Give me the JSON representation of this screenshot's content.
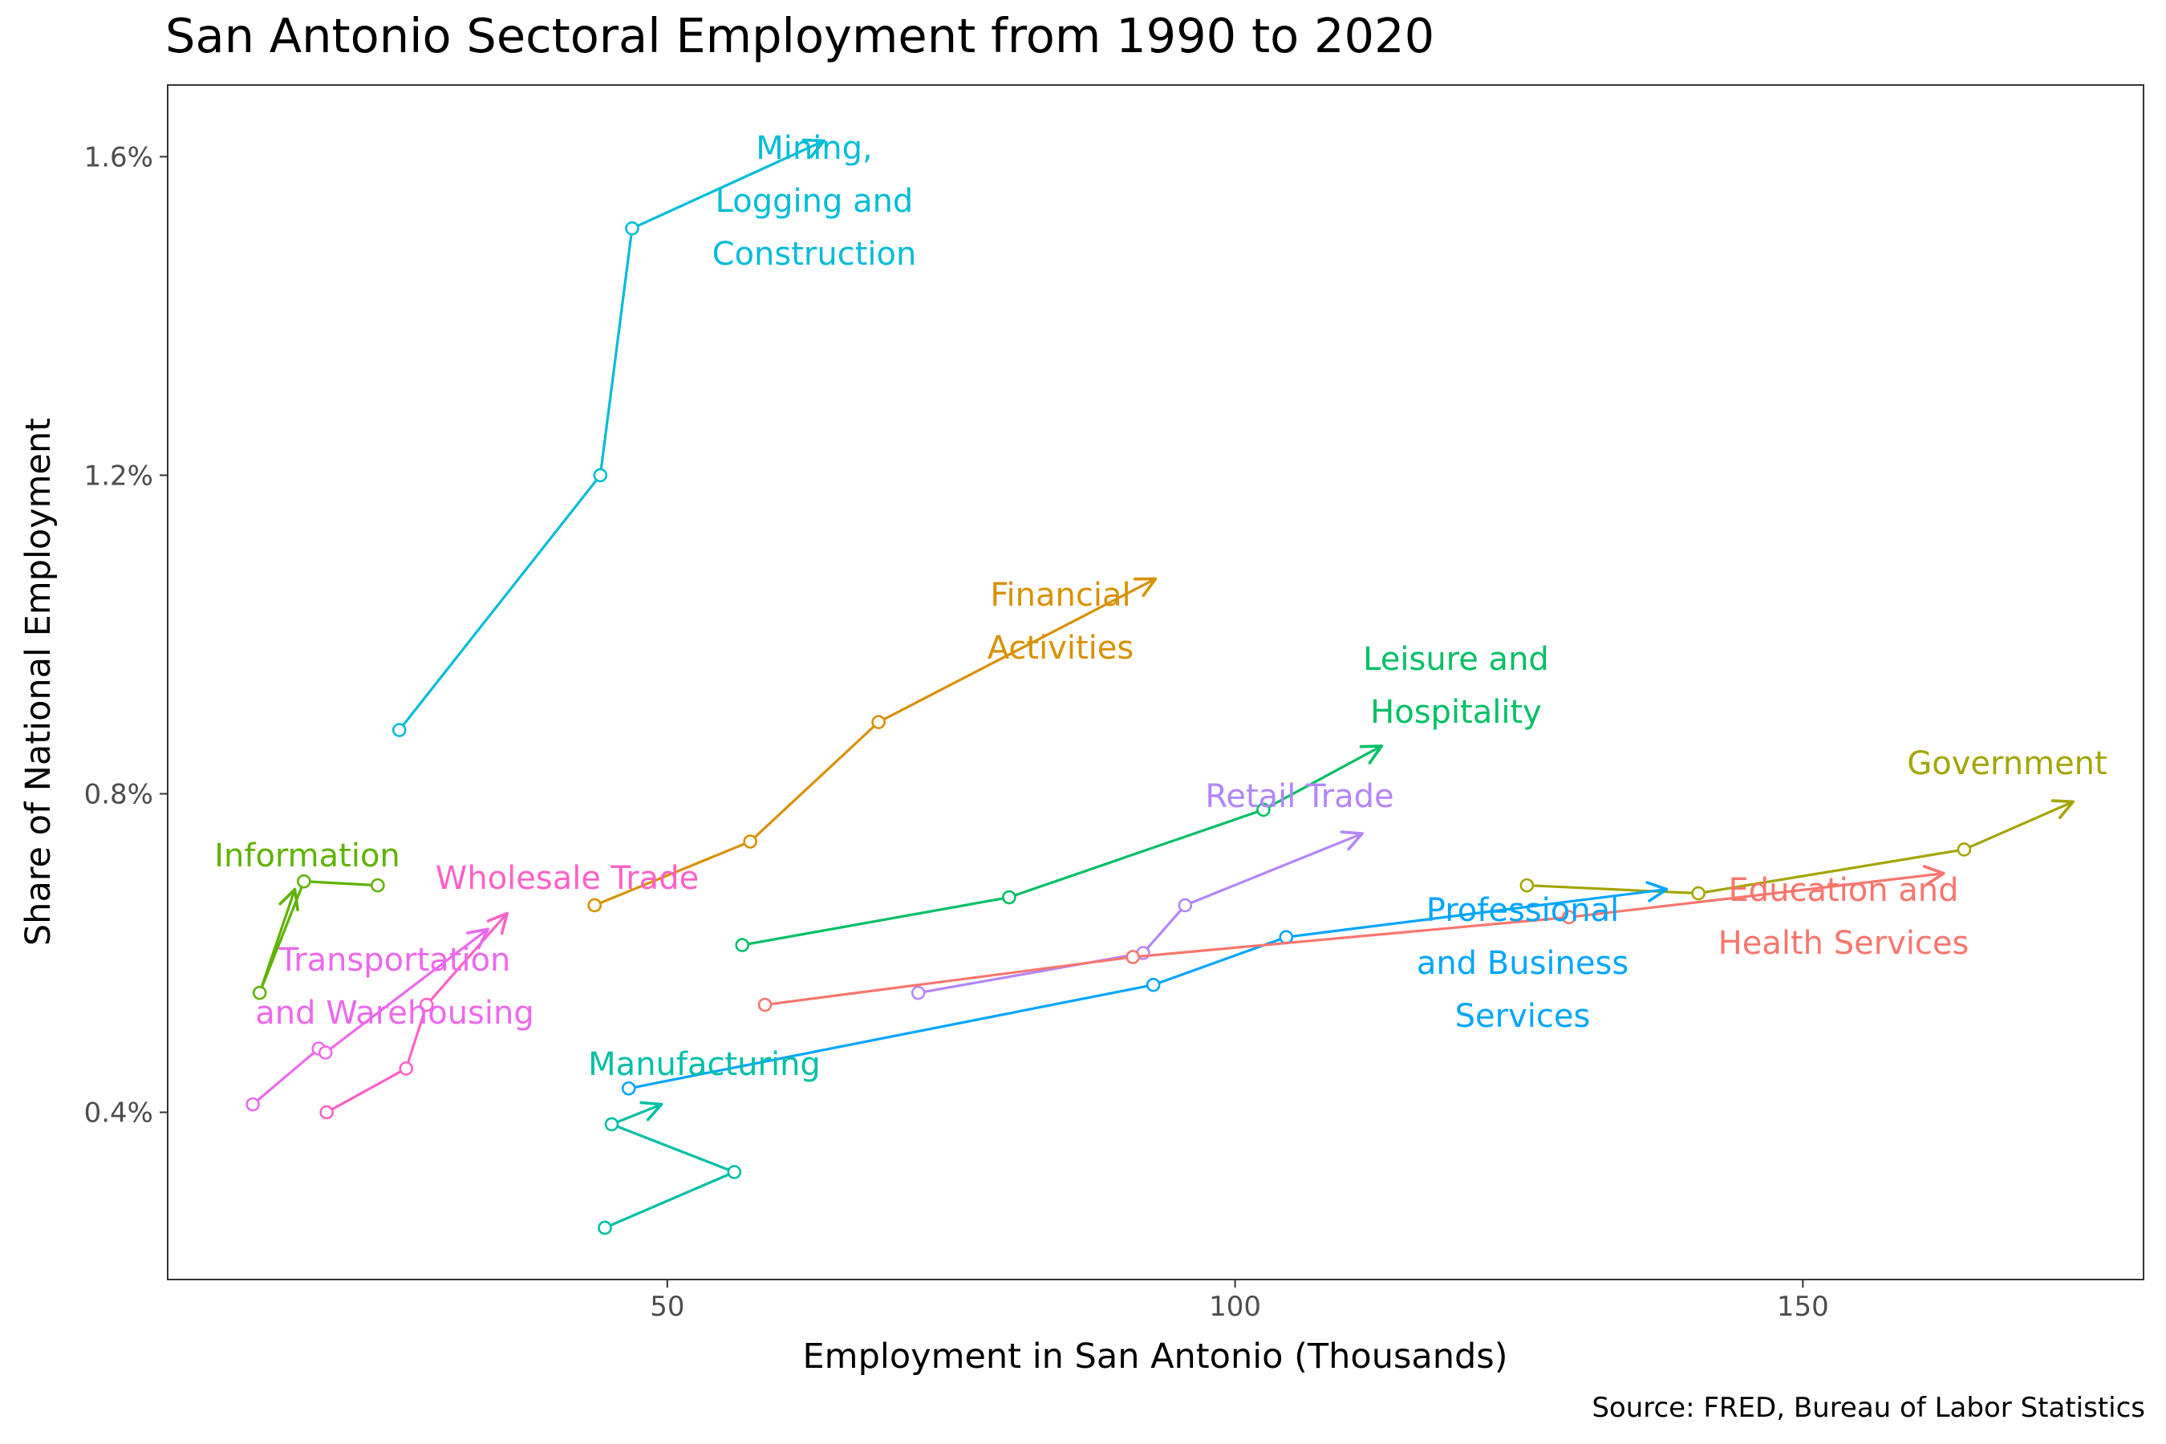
{
  "chart_data": {
    "type": "line",
    "title": "San Antonio Sectoral Employment from 1990 to 2020",
    "xlabel": "Employment in San Antonio (Thousands)",
    "ylabel": "Share of National Employment",
    "caption": "Source: FRED, Bureau of Labor Statistics",
    "xlim": [
      6,
      180
    ],
    "ylim": [
      0.19,
      1.69
    ],
    "x_ticks": [
      50,
      100,
      150
    ],
    "y_ticks": [
      0.4,
      0.8,
      1.2,
      1.6
    ],
    "y_tick_labels": [
      "0.4%",
      "0.8%",
      "1.2%",
      "1.6%"
    ],
    "grid": false,
    "legend": "none (direct labels)",
    "series": [
      {
        "name": "Mining, Logging and Construction",
        "color": "#00BCD8",
        "label_lines": [
          "Mining,",
          "Logging and",
          "Construction"
        ],
        "x": [
          26.4,
          44.1,
          46.9,
          63.8
        ],
        "y": [
          0.88,
          1.2,
          1.51,
          1.62
        ]
      },
      {
        "name": "Financial Activities",
        "color": "#D89000",
        "label_lines": [
          "Financial",
          "Activities"
        ],
        "x": [
          43.6,
          57.3,
          68.6,
          93.0
        ],
        "y": [
          0.66,
          0.74,
          0.89,
          1.07
        ]
      },
      {
        "name": "Leisure and Hospitality",
        "color": "#00BF65",
        "label_lines": [
          "Leisure and",
          "Hospitality"
        ],
        "x": [
          56.6,
          80.1,
          102.5,
          112.9
        ],
        "y": [
          0.61,
          0.67,
          0.78,
          0.86
        ]
      },
      {
        "name": "Government",
        "color": "#A3A500",
        "label_lines": [
          "Government"
        ],
        "x": [
          125.7,
          140.8,
          164.2,
          173.8
        ],
        "y": [
          0.685,
          0.675,
          0.73,
          0.79
        ]
      },
      {
        "name": "Retail Trade",
        "color": "#B385FF",
        "label_lines": [
          "Retail Trade"
        ],
        "x": [
          72.1,
          91.9,
          95.6,
          111.2
        ],
        "y": [
          0.55,
          0.6,
          0.66,
          0.75
        ]
      },
      {
        "name": "Professional and Business Services",
        "color": "#00A5FF",
        "label_lines": [
          "Professional",
          "and Business",
          "Services"
        ],
        "x": [
          46.6,
          92.8,
          104.5,
          138.0
        ],
        "y": [
          0.43,
          0.56,
          0.62,
          0.68
        ]
      },
      {
        "name": "Education and Health Services",
        "color": "#F8766D",
        "label_lines": [
          "Education and",
          "Health Services"
        ],
        "x": [
          58.6,
          91.0,
          129.4,
          162.4
        ],
        "y": [
          0.535,
          0.595,
          0.645,
          0.7
        ]
      },
      {
        "name": "Information",
        "color": "#5EB300",
        "label_lines": [
          "Information"
        ],
        "x": [
          24.5,
          18.0,
          14.1,
          17.2
        ],
        "y": [
          0.685,
          0.69,
          0.55,
          0.68
        ]
      },
      {
        "name": "Wholesale Trade",
        "color": "#FF61C6",
        "label_lines": [
          "Wholesale Trade"
        ],
        "x": [
          20.0,
          27.0,
          28.8,
          35.9
        ],
        "y": [
          0.4,
          0.455,
          0.535,
          0.65
        ]
      },
      {
        "name": "Transportation and Warehousing",
        "color": "#ED68ED",
        "label_lines": [
          "Transportation",
          "and Warehousing"
        ],
        "x": [
          13.5,
          19.3,
          19.9,
          34.2
        ],
        "y": [
          0.41,
          0.48,
          0.475,
          0.63
        ]
      },
      {
        "name": "Manufacturing",
        "color": "#00BFA5",
        "label_lines": [
          "Manufacturing"
        ],
        "x": [
          44.5,
          55.9,
          45.1,
          49.5
        ],
        "y": [
          0.255,
          0.325,
          0.385,
          0.41
        ]
      }
    ]
  }
}
